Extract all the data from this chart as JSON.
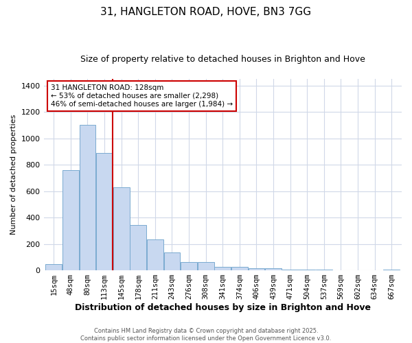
{
  "title": "31, HANGLETON ROAD, HOVE, BN3 7GG",
  "subtitle": "Size of property relative to detached houses in Brighton and Hove",
  "xlabel": "Distribution of detached houses by size in Brighton and Hove",
  "ylabel": "Number of detached properties",
  "bar_labels": [
    "15sqm",
    "48sqm",
    "80sqm",
    "113sqm",
    "145sqm",
    "178sqm",
    "211sqm",
    "243sqm",
    "276sqm",
    "308sqm",
    "341sqm",
    "374sqm",
    "406sqm",
    "439sqm",
    "471sqm",
    "504sqm",
    "537sqm",
    "569sqm",
    "602sqm",
    "634sqm",
    "667sqm"
  ],
  "bar_values": [
    48,
    760,
    1100,
    890,
    630,
    345,
    235,
    135,
    65,
    65,
    28,
    28,
    18,
    18,
    8,
    8,
    8,
    0,
    0,
    0,
    8
  ],
  "bar_color": "#c8d8f0",
  "bar_edge_color": "#7aaad0",
  "vline_pos": 3.5,
  "vline_color": "#cc0000",
  "annotation_text": "31 HANGLETON ROAD: 128sqm\n← 53% of detached houses are smaller (2,298)\n46% of semi-detached houses are larger (1,984) →",
  "annotation_box_facecolor": "#ffffff",
  "annotation_box_edgecolor": "#cc0000",
  "ylim": [
    0,
    1450
  ],
  "yticks": [
    0,
    200,
    400,
    600,
    800,
    1000,
    1200,
    1400
  ],
  "bg_color": "#ffffff",
  "plot_bg_color": "#ffffff",
  "grid_color": "#d0d8e8",
  "title_fontsize": 11,
  "subtitle_fontsize": 9,
  "ylabel_fontsize": 8,
  "xlabel_fontsize": 9,
  "tick_fontsize": 7.5,
  "footer_text": "Contains HM Land Registry data © Crown copyright and database right 2025.\nContains public sector information licensed under the Open Government Licence v3.0."
}
